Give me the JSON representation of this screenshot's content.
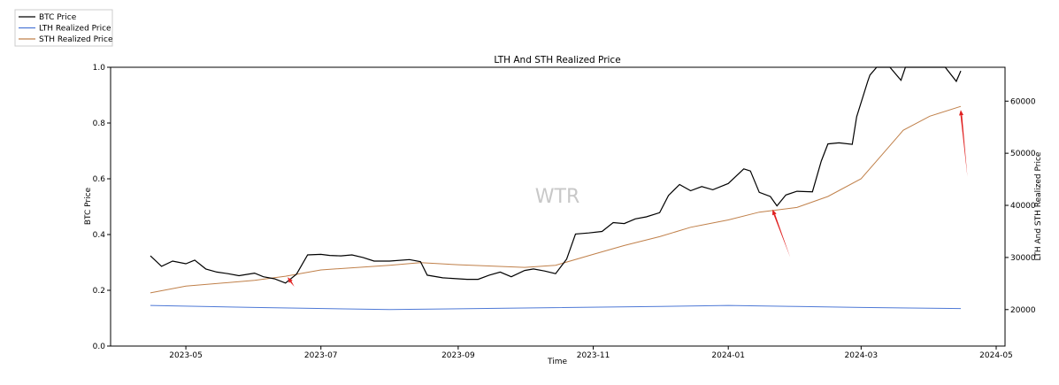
{
  "chart_data": {
    "type": "line",
    "title": "LTH And STH Realized Price",
    "xlabel": "Time",
    "ylabel": "BTC Price",
    "y2label": "LTH And STH Realized Price",
    "watermark": "WTR",
    "xlim": [
      "2023-03-28",
      "2024-05-05"
    ],
    "ylim": [
      0.0,
      1.0
    ],
    "y2lim": [
      13000,
      66500
    ],
    "xticks": [
      "2023-05",
      "2023-07",
      "2023-09",
      "2023-11",
      "2024-01",
      "2024-03",
      "2024-05"
    ],
    "yticks": [
      "0.0",
      "0.2",
      "0.4",
      "0.6",
      "0.8",
      "1.0"
    ],
    "y2ticks": [
      "20000",
      "30000",
      "40000",
      "50000",
      "60000"
    ],
    "legend_position": "outside-top-left",
    "grid": false,
    "colors": {
      "btc": "#000000",
      "lth": "#4e79d6",
      "sth": "#c0804a",
      "arrow": "#e02020"
    },
    "series": [
      {
        "name": "BTC Price",
        "axis": "right",
        "color": "#000000",
        "x": [
          "2023-04-15",
          "2023-04-20",
          "2023-04-25",
          "2023-05-01",
          "2023-05-05",
          "2023-05-10",
          "2023-05-15",
          "2023-05-20",
          "2023-05-25",
          "2023-06-01",
          "2023-06-05",
          "2023-06-10",
          "2023-06-15",
          "2023-06-20",
          "2023-06-25",
          "2023-07-01",
          "2023-07-05",
          "2023-07-10",
          "2023-07-15",
          "2023-07-20",
          "2023-07-25",
          "2023-08-01",
          "2023-08-10",
          "2023-08-15",
          "2023-08-18",
          "2023-08-25",
          "2023-09-01",
          "2023-09-05",
          "2023-09-10",
          "2023-09-15",
          "2023-09-20",
          "2023-09-25",
          "2023-10-01",
          "2023-10-05",
          "2023-10-10",
          "2023-10-15",
          "2023-10-20",
          "2023-10-24",
          "2023-10-30",
          "2023-11-05",
          "2023-11-10",
          "2023-11-15",
          "2023-11-20",
          "2023-11-25",
          "2023-12-01",
          "2023-12-05",
          "2023-12-10",
          "2023-12-15",
          "2023-12-20",
          "2023-12-25",
          "2024-01-01",
          "2024-01-08",
          "2024-01-11",
          "2024-01-15",
          "2024-01-20",
          "2024-01-23",
          "2024-01-27",
          "2024-02-01",
          "2024-02-08",
          "2024-02-12",
          "2024-02-15",
          "2024-02-20",
          "2024-02-26",
          "2024-02-28",
          "2024-03-04",
          "2024-03-05",
          "2024-03-08",
          "2024-03-12",
          "2024-03-14",
          "2024-03-19",
          "2024-03-21",
          "2024-03-25",
          "2024-04-01",
          "2024-04-08",
          "2024-04-13",
          "2024-04-15"
        ],
        "values": [
          30300,
          28300,
          29300,
          28800,
          29500,
          27800,
          27200,
          26900,
          26500,
          27000,
          26300,
          25900,
          25100,
          26800,
          30500,
          30600,
          30400,
          30300,
          30500,
          30000,
          29300,
          29300,
          29600,
          29200,
          26600,
          26100,
          25900,
          25800,
          25800,
          26600,
          27200,
          26300,
          27500,
          27800,
          27400,
          26900,
          29700,
          34500,
          34700,
          35000,
          36700,
          36500,
          37400,
          37800,
          38600,
          41900,
          44000,
          42800,
          43600,
          43000,
          44200,
          47000,
          46600,
          42500,
          41700,
          39900,
          42000,
          42700,
          42600,
          48500,
          51800,
          52000,
          51700,
          57000,
          63800,
          65000,
          68200,
          71500,
          72800,
          64000,
          67900,
          69800,
          70500,
          71000,
          63800,
          65800
        ]
      },
      {
        "name": "LTH Realized Price",
        "axis": "right",
        "color": "#4e79d6",
        "x": [
          "2023-04-15",
          "2023-06-01",
          "2023-08-01",
          "2023-10-01",
          "2023-12-01",
          "2024-01-01",
          "2024-02-01",
          "2024-03-01",
          "2024-04-15"
        ],
        "values": [
          20800,
          20400,
          20000,
          20300,
          20600,
          20800,
          20600,
          20400,
          20200
        ]
      },
      {
        "name": "STH Realized Price",
        "axis": "right",
        "color": "#c0804a",
        "x": [
          "2023-04-15",
          "2023-05-01",
          "2023-06-01",
          "2023-06-15",
          "2023-07-01",
          "2023-08-01",
          "2023-08-15",
          "2023-09-01",
          "2023-10-01",
          "2023-10-15",
          "2023-11-01",
          "2023-11-15",
          "2023-12-01",
          "2023-12-15",
          "2024-01-01",
          "2024-01-15",
          "2024-02-01",
          "2024-02-15",
          "2024-03-01",
          "2024-03-10",
          "2024-03-20",
          "2024-04-01",
          "2024-04-15"
        ],
        "values": [
          23200,
          24500,
          25600,
          26400,
          27600,
          28500,
          29000,
          28600,
          28100,
          28500,
          30600,
          32300,
          34000,
          35800,
          37200,
          38700,
          39600,
          41700,
          45100,
          49500,
          54400,
          57100,
          59000
        ]
      }
    ],
    "annotations": [
      {
        "type": "arrow",
        "from": [
          "2023-06-19",
          24400
        ],
        "to": [
          "2023-06-16",
          26200
        ]
      },
      {
        "type": "arrow",
        "from": [
          "2024-01-29",
          30000
        ],
        "to": [
          "2024-01-21",
          39200
        ]
      },
      {
        "type": "arrow",
        "from": [
          "2024-04-18",
          45500
        ],
        "to": [
          "2024-04-15",
          58300
        ]
      }
    ]
  }
}
